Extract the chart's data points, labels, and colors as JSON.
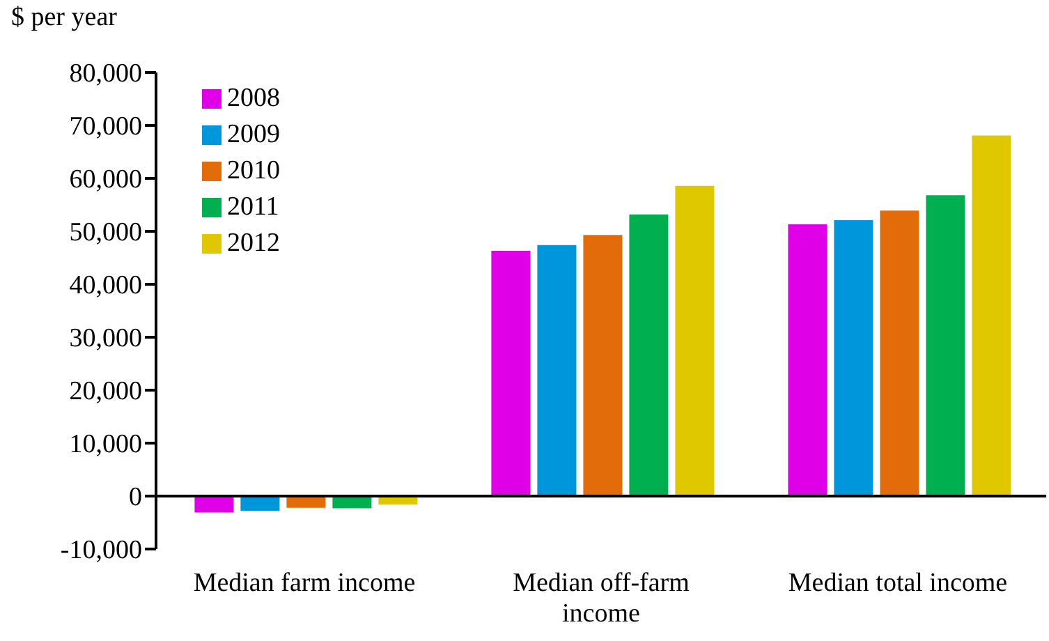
{
  "chart_data": {
    "type": "bar",
    "ylabel": "$ per year",
    "categories": [
      "Median farm income",
      "Median off-farm income",
      "Median total income"
    ],
    "series": [
      {
        "name": "2008",
        "color": "#e000e8",
        "values": [
          -3100,
          46300,
          51300
        ]
      },
      {
        "name": "2009",
        "color": "#0096db",
        "values": [
          -2800,
          47400,
          52100
        ]
      },
      {
        "name": "2010",
        "color": "#e36c0a",
        "values": [
          -2200,
          49300,
          53900
        ]
      },
      {
        "name": "2011",
        "color": "#00b050",
        "values": [
          -2300,
          53200,
          56800
        ]
      },
      {
        "name": "2012",
        "color": "#e0c800",
        "values": [
          -1600,
          58600,
          68100
        ]
      }
    ],
    "ylim": [
      -10000,
      80000
    ],
    "yticks": [
      {
        "value": -10000,
        "label": "-10,000"
      },
      0,
      {
        "value": 10000,
        "label": "10,000"
      },
      {
        "value": 20000,
        "label": "20,000"
      },
      {
        "value": 30000,
        "label": "30,000"
      },
      {
        "value": 40000,
        "label": "40,000"
      },
      {
        "value": 50000,
        "label": "50,000"
      },
      {
        "value": 60000,
        "label": "60,000"
      },
      {
        "value": 70000,
        "label": "70,000"
      },
      {
        "value": 80000,
        "label": "80,000"
      }
    ],
    "legend": "top left"
  }
}
